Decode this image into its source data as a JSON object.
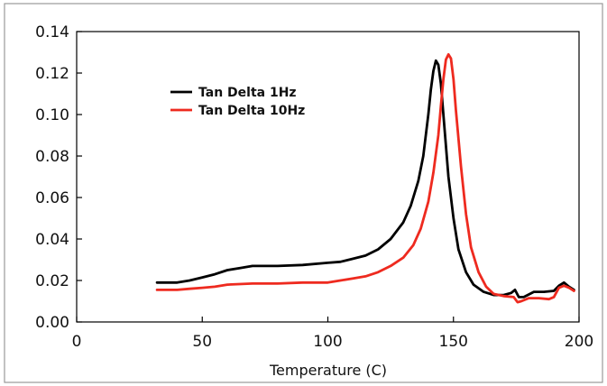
{
  "chart_data": {
    "type": "line",
    "title": "",
    "xlabel": "Temperature (C)",
    "ylabel": "",
    "xlim": [
      0,
      200
    ],
    "ylim": [
      0,
      0.14
    ],
    "x_ticks": [
      "0",
      "50",
      "100",
      "150",
      "200"
    ],
    "y_ticks": [
      "0.00",
      "0.02",
      "0.04",
      "0.06",
      "0.08",
      "0.10",
      "0.12",
      "0.14"
    ],
    "grid": false,
    "legend_position": "upper-left",
    "series": [
      {
        "name": "Tan Delta 1Hz",
        "color": "#000000",
        "points": [
          [
            32,
            0.019
          ],
          [
            40,
            0.019
          ],
          [
            45,
            0.02
          ],
          [
            50,
            0.0215
          ],
          [
            55,
            0.023
          ],
          [
            60,
            0.025
          ],
          [
            65,
            0.026
          ],
          [
            70,
            0.027
          ],
          [
            80,
            0.027
          ],
          [
            90,
            0.0275
          ],
          [
            100,
            0.0285
          ],
          [
            105,
            0.029
          ],
          [
            110,
            0.0305
          ],
          [
            115,
            0.032
          ],
          [
            120,
            0.035
          ],
          [
            125,
            0.04
          ],
          [
            130,
            0.048
          ],
          [
            133,
            0.056
          ],
          [
            136,
            0.068
          ],
          [
            138,
            0.08
          ],
          [
            140,
            0.1
          ],
          [
            141,
            0.112
          ],
          [
            142,
            0.121
          ],
          [
            143,
            0.126
          ],
          [
            144,
            0.124
          ],
          [
            145,
            0.115
          ],
          [
            146,
            0.1
          ],
          [
            148,
            0.07
          ],
          [
            150,
            0.05
          ],
          [
            152,
            0.035
          ],
          [
            155,
            0.024
          ],
          [
            158,
            0.018
          ],
          [
            162,
            0.0145
          ],
          [
            166,
            0.013
          ],
          [
            170,
            0.013
          ],
          [
            173,
            0.014
          ],
          [
            174.5,
            0.0155
          ],
          [
            176,
            0.012
          ],
          [
            178,
            0.012
          ],
          [
            182,
            0.0145
          ],
          [
            186,
            0.0145
          ],
          [
            190,
            0.015
          ],
          [
            192,
            0.0175
          ],
          [
            194,
            0.019
          ],
          [
            196,
            0.017
          ],
          [
            198,
            0.0155
          ]
        ]
      },
      {
        "name": "Tan Delta 10Hz",
        "color": "#ee2a1f",
        "points": [
          [
            32,
            0.0155
          ],
          [
            40,
            0.0155
          ],
          [
            45,
            0.016
          ],
          [
            50,
            0.0165
          ],
          [
            55,
            0.017
          ],
          [
            60,
            0.018
          ],
          [
            70,
            0.0185
          ],
          [
            80,
            0.0185
          ],
          [
            90,
            0.019
          ],
          [
            100,
            0.019
          ],
          [
            105,
            0.02
          ],
          [
            110,
            0.021
          ],
          [
            115,
            0.022
          ],
          [
            120,
            0.024
          ],
          [
            125,
            0.027
          ],
          [
            130,
            0.031
          ],
          [
            134,
            0.037
          ],
          [
            137,
            0.045
          ],
          [
            140,
            0.058
          ],
          [
            142,
            0.072
          ],
          [
            144,
            0.09
          ],
          [
            145,
            0.104
          ],
          [
            146,
            0.117
          ],
          [
            147,
            0.1265
          ],
          [
            148,
            0.129
          ],
          [
            149,
            0.127
          ],
          [
            150,
            0.117
          ],
          [
            151,
            0.102
          ],
          [
            153,
            0.075
          ],
          [
            155,
            0.052
          ],
          [
            157,
            0.036
          ],
          [
            160,
            0.024
          ],
          [
            163,
            0.017
          ],
          [
            166,
            0.0135
          ],
          [
            170,
            0.0125
          ],
          [
            174,
            0.012
          ],
          [
            175.5,
            0.0095
          ],
          [
            177,
            0.01
          ],
          [
            180,
            0.0115
          ],
          [
            184,
            0.0115
          ],
          [
            188,
            0.011
          ],
          [
            190,
            0.012
          ],
          [
            192,
            0.0165
          ],
          [
            194,
            0.0175
          ],
          [
            196,
            0.0165
          ],
          [
            198,
            0.015
          ]
        ]
      }
    ]
  }
}
